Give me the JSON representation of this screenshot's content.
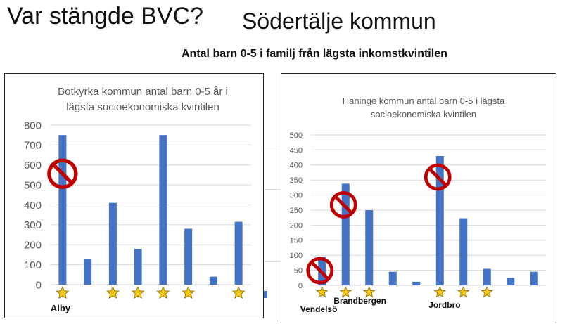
{
  "header": {
    "title": "Var stängde BVC?",
    "subtitle": "Södertälje kommun",
    "caption": "Antal barn 0-5 i familj från lägsta inkomstkvintilen"
  },
  "colors": {
    "bar": "#4472C4",
    "grid": "#d9d9d9",
    "axis_text": "#595959",
    "stop_sign": "#c00000",
    "star": "#f5c518"
  },
  "chart_data": [
    {
      "type": "bar",
      "title": "Botkyrka kommun antal barn 0-5 år i lägsta socioekonomiska kvintilen",
      "title_lines": [
        "Botkyrka kommun antal barn 0-5 år i",
        "lägsta socioekonomiska kvintilen"
      ],
      "xlabel": "",
      "ylabel": "",
      "ylim": [
        0,
        800
      ],
      "yticks": [
        "0",
        "100",
        "200",
        "300",
        "400",
        "500",
        "600",
        "700",
        "800"
      ],
      "values": [
        750,
        130,
        410,
        180,
        750,
        280,
        40,
        315
      ],
      "star_markers": [
        true,
        false,
        true,
        true,
        true,
        true,
        false,
        true
      ],
      "closed_markers": [
        true,
        false,
        false,
        false,
        false,
        false,
        false,
        false
      ],
      "place_labels": [
        {
          "text": "Alby",
          "index": 0
        }
      ],
      "grid": true
    },
    {
      "type": "bar",
      "title": "Haninge kommun antal barn 0-5 i lägsta socioekonomiska kvintilen",
      "title_lines": [
        "Haninge kommun antal barn 0-5 i lägsta",
        "socioekonomiska kvintilen"
      ],
      "xlabel": "",
      "ylabel": "",
      "ylim": [
        0,
        500
      ],
      "yticks": [
        "0",
        "50",
        "100",
        "150",
        "200",
        "250",
        "300",
        "350",
        "400",
        "450",
        "500"
      ],
      "values": [
        95,
        338,
        250,
        45,
        12,
        430,
        223,
        55,
        25,
        45
      ],
      "star_markers": [
        true,
        true,
        true,
        false,
        false,
        true,
        true,
        true,
        false,
        false
      ],
      "closed_markers": [
        true,
        true,
        false,
        false,
        false,
        true,
        false,
        false,
        false,
        false
      ],
      "place_labels": [
        {
          "text": "Vendelsö",
          "index": 0
        },
        {
          "text": "Brandbergen",
          "index": 1
        },
        {
          "text": "Jordbro",
          "index": 5
        }
      ],
      "grid": true
    }
  ]
}
